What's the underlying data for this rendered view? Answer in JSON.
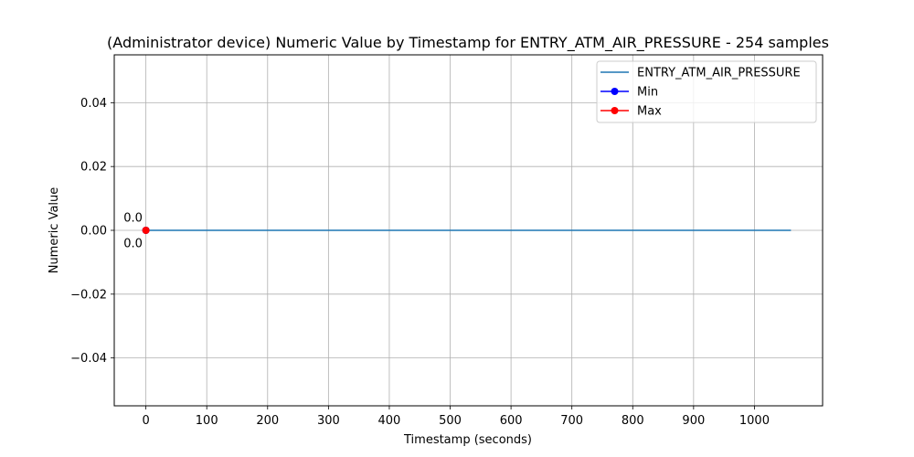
{
  "chart_data": {
    "type": "line",
    "title": "(Administrator device) Numeric Value by Timestamp for ENTRY_ATM_AIR_PRESSURE - 254 samples",
    "xlabel": "Timestamp (seconds)",
    "ylabel": "Numeric Value",
    "xlim": [
      -52,
      1112
    ],
    "ylim": [
      -0.055,
      0.055
    ],
    "x_ticks": [
      0,
      100,
      200,
      300,
      400,
      500,
      600,
      700,
      800,
      900,
      1000
    ],
    "x_tick_labels": [
      "0",
      "100",
      "200",
      "300",
      "400",
      "500",
      "600",
      "700",
      "800",
      "900",
      "1000"
    ],
    "y_ticks": [
      -0.04,
      -0.02,
      0.0,
      0.02,
      0.04
    ],
    "y_tick_labels": [
      "−0.04",
      "−0.02",
      "0.00",
      "0.02",
      "0.04"
    ],
    "grid": true,
    "legend_position": "top-right",
    "series": [
      {
        "name": "ENTRY_ATM_AIR_PRESSURE",
        "color": "#1f77b4",
        "x": [
          0,
          1060
        ],
        "y": [
          0.0,
          0.0
        ]
      }
    ],
    "markers": [
      {
        "name": "Min",
        "color": "#0000ff",
        "x": 0,
        "y": 0.0,
        "label": "0.0",
        "label_side": "below"
      },
      {
        "name": "Max",
        "color": "#ff0000",
        "x": 0,
        "y": 0.0,
        "label": "0.0",
        "label_side": "above"
      }
    ]
  }
}
